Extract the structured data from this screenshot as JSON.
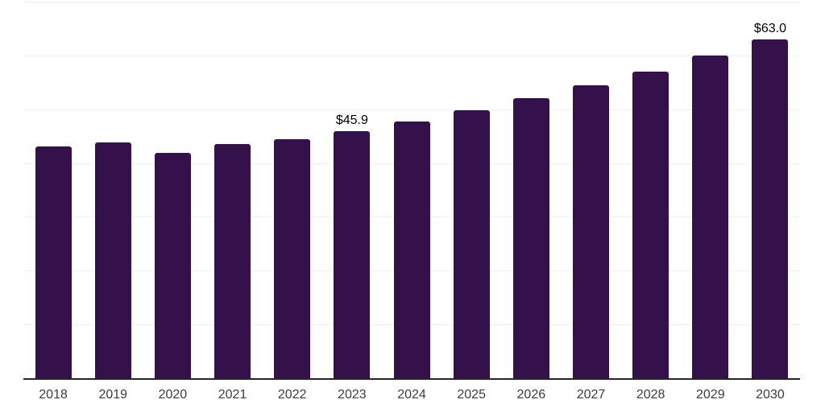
{
  "colors": {
    "bar": "#35114C",
    "axis_line": "#262626",
    "gridline": "#F2F2F2",
    "x_label": "#3D3D3D",
    "value_label": "#000000",
    "background": "#FFFFFF"
  },
  "chart_data": {
    "type": "bar",
    "title": "",
    "xlabel": "",
    "ylabel": "",
    "categories": [
      "2018",
      "2019",
      "2020",
      "2021",
      "2022",
      "2023",
      "2024",
      "2025",
      "2026",
      "2027",
      "2028",
      "2029",
      "2030"
    ],
    "values": [
      43.1,
      43.9,
      41.9,
      43.5,
      44.4,
      45.9,
      47.7,
      49.8,
      52.0,
      54.5,
      57.0,
      60.0,
      63.0
    ],
    "data_labels": {
      "2023": "$45.9",
      "2030": "$63.0"
    },
    "ylim": [
      0,
      70
    ],
    "grid_interval": 10,
    "grid": true,
    "legend": false,
    "y_axis_labels_visible": false
  }
}
